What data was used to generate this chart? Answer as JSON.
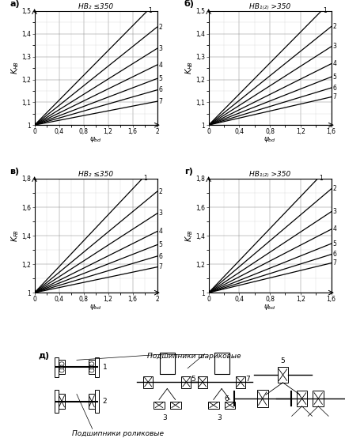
{
  "charts": [
    {
      "panel": "а)",
      "title": "HB₂ ≤350",
      "xlim": [
        0,
        2.0
      ],
      "ylim": [
        1.0,
        1.5
      ],
      "xticks": [
        0,
        0.4,
        0.8,
        1.2,
        1.6,
        2.0
      ],
      "yticks": [
        1.0,
        1.1,
        1.2,
        1.3,
        1.4,
        1.5
      ],
      "ylabel_type": "HB",
      "slopes": [
        0.272,
        0.215,
        0.168,
        0.132,
        0.102,
        0.077,
        0.052
      ]
    },
    {
      "panel": "б)",
      "title": "HB₁₍₂₎ >350",
      "xlim": [
        0,
        1.6
      ],
      "ylim": [
        1.0,
        1.5
      ],
      "xticks": [
        0,
        0.4,
        0.8,
        1.2,
        1.6
      ],
      "yticks": [
        1.0,
        1.1,
        1.2,
        1.3,
        1.4,
        1.5
      ],
      "ylabel_type": "HB",
      "slopes": [
        0.34,
        0.27,
        0.215,
        0.168,
        0.132,
        0.102,
        0.077
      ]
    },
    {
      "panel": "в)",
      "title": "HB₂ ≤350",
      "xlim": [
        0,
        2.0
      ],
      "ylim": [
        1.0,
        1.8
      ],
      "xticks": [
        0,
        0.4,
        0.8,
        1.2,
        1.6,
        2.0
      ],
      "yticks": [
        1.0,
        1.2,
        1.4,
        1.6,
        1.8
      ],
      "ylabel_type": "FB",
      "slopes": [
        0.455,
        0.355,
        0.278,
        0.215,
        0.168,
        0.128,
        0.09
      ]
    },
    {
      "panel": "г)",
      "title": "HB₁₍₂₎ >350",
      "xlim": [
        0,
        1.6
      ],
      "ylim": [
        1.0,
        1.8
      ],
      "xticks": [
        0,
        0.4,
        0.8,
        1.2,
        1.6
      ],
      "yticks": [
        1.0,
        1.2,
        1.4,
        1.6,
        1.8
      ],
      "ylabel_type": "FB",
      "slopes": [
        0.562,
        0.455,
        0.355,
        0.278,
        0.215,
        0.168,
        0.13
      ]
    }
  ],
  "panel_d": "д)",
  "ball_label": "Подшипники шариковые",
  "roller_label": "Подшипники роликовые"
}
